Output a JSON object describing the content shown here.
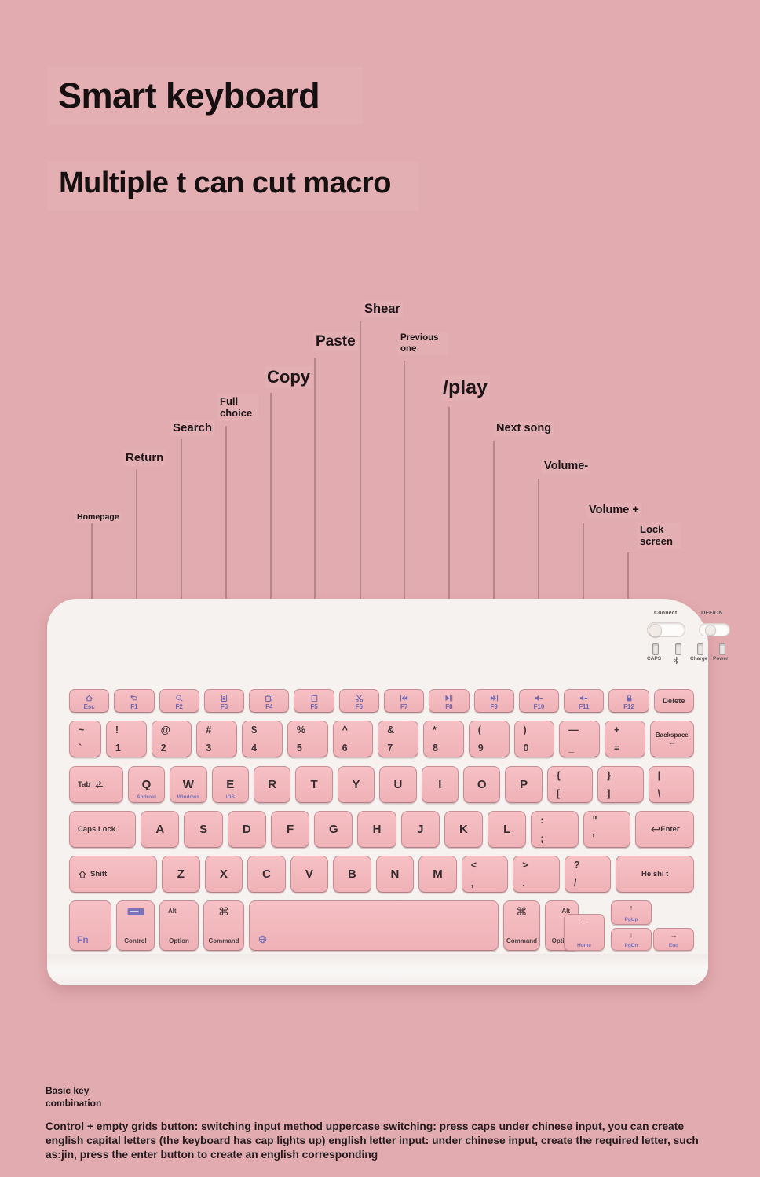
{
  "header": {
    "title": "Smart keyboard",
    "subtitle": "Multiple t can cut macro"
  },
  "callouts": [
    {
      "label": "Homepage",
      "target_key": "Esc"
    },
    {
      "label": "Return",
      "target_key": "F1"
    },
    {
      "label": "Search",
      "target_key": "F2"
    },
    {
      "label": "Full choice",
      "target_key": "F3"
    },
    {
      "label": "Copy",
      "target_key": "F4"
    },
    {
      "label": "Paste",
      "target_key": "F5"
    },
    {
      "label": "Shear",
      "target_key": "F6"
    },
    {
      "label": "Previous one",
      "target_key": "F7"
    },
    {
      "label": "/play",
      "target_key": "F8"
    },
    {
      "label": "Next song",
      "target_key": "F9"
    },
    {
      "label": "Volume-",
      "target_key": "F10"
    },
    {
      "label": "Volume +",
      "target_key": "F11"
    },
    {
      "label": "Lock screen",
      "target_key": "F12"
    }
  ],
  "keyboard": {
    "indicator": {
      "connect_label": "Connect",
      "power_label": "OFF/ON",
      "leds": [
        {
          "label": "CAPS"
        },
        {
          "icon": "bluetooth-icon"
        },
        {
          "label": "Charge"
        },
        {
          "label": "Power"
        }
      ]
    },
    "colors": {
      "background_pink": "#e2abaf",
      "keyboard_body": "#f5f2f0",
      "key_pink": "#f2b8bc",
      "accent_purple": "#6f66ae",
      "key_text": "#3f3437"
    },
    "rows": [
      {
        "keys": [
          {
            "name": "esc",
            "type": "fn",
            "icon": "home-icon",
            "label": "Esc"
          },
          {
            "name": "f1",
            "type": "fn",
            "icon": "back-icon",
            "label": "F1"
          },
          {
            "name": "f2",
            "type": "fn",
            "icon": "search-icon",
            "label": "F2"
          },
          {
            "name": "f3",
            "type": "fn",
            "icon": "select-all-icon",
            "label": "F3"
          },
          {
            "name": "f4",
            "type": "fn",
            "icon": "copy-icon",
            "label": "F4"
          },
          {
            "name": "f5",
            "type": "fn",
            "icon": "paste-icon",
            "label": "F5"
          },
          {
            "name": "f6",
            "type": "fn",
            "icon": "cut-icon",
            "label": "F6"
          },
          {
            "name": "f7",
            "type": "fn",
            "icon": "prev-track-icon",
            "label": "F7"
          },
          {
            "name": "f8",
            "type": "fn",
            "icon": "play-pause-icon",
            "label": "F8"
          },
          {
            "name": "f9",
            "type": "fn",
            "icon": "next-track-icon",
            "label": "F9"
          },
          {
            "name": "f10",
            "type": "fn",
            "icon": "volume-down-icon",
            "label": "F10"
          },
          {
            "name": "f11",
            "type": "fn",
            "icon": "volume-up-icon",
            "label": "F11"
          },
          {
            "name": "f12",
            "type": "fn",
            "icon": "lock-icon",
            "label": "F12"
          },
          {
            "name": "delete",
            "type": "plain",
            "label": "Delete"
          }
        ]
      },
      {
        "keys": [
          {
            "name": "grave",
            "type": "dual",
            "top": "~",
            "bottom": "`"
          },
          {
            "name": "1",
            "type": "dual",
            "top": "!",
            "bottom": "1"
          },
          {
            "name": "2",
            "type": "dual",
            "top": "@",
            "bottom": "2"
          },
          {
            "name": "3",
            "type": "dual",
            "top": "#",
            "bottom": "3"
          },
          {
            "name": "4",
            "type": "dual",
            "top": "$",
            "bottom": "4"
          },
          {
            "name": "5",
            "type": "dual",
            "top": "%",
            "bottom": "5"
          },
          {
            "name": "6",
            "type": "dual",
            "top": "^",
            "bottom": "6"
          },
          {
            "name": "7",
            "type": "dual",
            "top": "&",
            "bottom": "7"
          },
          {
            "name": "8",
            "type": "dual",
            "top": "*",
            "bottom": "8"
          },
          {
            "name": "9",
            "type": "dual",
            "top": "(",
            "bottom": "9"
          },
          {
            "name": "0",
            "type": "dual",
            "top": ")",
            "bottom": "0"
          },
          {
            "name": "minus",
            "type": "dual",
            "top": "—",
            "bottom": "_"
          },
          {
            "name": "equals",
            "type": "dual",
            "top": "+",
            "bottom": "="
          },
          {
            "name": "backspace",
            "type": "backspace",
            "label": "Backspace",
            "arrow": "←"
          }
        ]
      },
      {
        "keys": [
          {
            "name": "tab",
            "type": "tab",
            "label": "Tab",
            "icon": "tab-icon"
          },
          {
            "name": "q",
            "type": "letter",
            "label": "Q",
            "sub": "Android"
          },
          {
            "name": "w",
            "type": "letter",
            "label": "W",
            "sub": "Windows"
          },
          {
            "name": "e",
            "type": "letter",
            "label": "E",
            "sub": "iOS"
          },
          {
            "name": "r",
            "type": "letter",
            "label": "R"
          },
          {
            "name": "t",
            "type": "letter",
            "label": "T"
          },
          {
            "name": "y",
            "type": "letter",
            "label": "Y"
          },
          {
            "name": "u",
            "type": "letter",
            "label": "U"
          },
          {
            "name": "i",
            "type": "letter",
            "label": "I"
          },
          {
            "name": "o",
            "type": "letter",
            "label": "O"
          },
          {
            "name": "p",
            "type": "letter",
            "label": "P"
          },
          {
            "name": "bracket-left",
            "type": "dual",
            "top": "{",
            "bottom": "["
          },
          {
            "name": "bracket-right",
            "type": "dual",
            "top": "}",
            "bottom": "]"
          },
          {
            "name": "backslash",
            "type": "dual",
            "top": "|",
            "bottom": "\\"
          }
        ]
      },
      {
        "keys": [
          {
            "name": "caps-lock",
            "type": "mod",
            "label": "Caps Lock"
          },
          {
            "name": "a",
            "type": "letter",
            "label": "A"
          },
          {
            "name": "s",
            "type": "letter",
            "label": "S"
          },
          {
            "name": "d",
            "type": "letter",
            "label": "D"
          },
          {
            "name": "f",
            "type": "letter",
            "label": "F"
          },
          {
            "name": "g",
            "type": "letter",
            "label": "G"
          },
          {
            "name": "h",
            "type": "letter",
            "label": "H"
          },
          {
            "name": "j",
            "type": "letter",
            "label": "J"
          },
          {
            "name": "k",
            "type": "letter",
            "label": "K"
          },
          {
            "name": "l",
            "type": "letter",
            "label": "L"
          },
          {
            "name": "semicolon",
            "type": "dual",
            "top": ":",
            "bottom": ";"
          },
          {
            "name": "quote",
            "type": "dual",
            "top": "\"",
            "bottom": "'"
          },
          {
            "name": "enter",
            "type": "enter",
            "label": "Enter",
            "icon": "enter-arrow-icon"
          }
        ]
      },
      {
        "keys": [
          {
            "name": "shift-left",
            "type": "shift",
            "label": "Shift",
            "icon": "shift-icon"
          },
          {
            "name": "z",
            "type": "letter",
            "label": "Z"
          },
          {
            "name": "x",
            "type": "letter",
            "label": "X"
          },
          {
            "name": "c",
            "type": "letter",
            "label": "C"
          },
          {
            "name": "v",
            "type": "letter",
            "label": "V"
          },
          {
            "name": "b",
            "type": "letter",
            "label": "B"
          },
          {
            "name": "n",
            "type": "letter",
            "label": "N"
          },
          {
            "name": "m",
            "type": "letter",
            "label": "M"
          },
          {
            "name": "comma",
            "type": "dual",
            "top": "<",
            "bottom": ","
          },
          {
            "name": "period",
            "type": "dual",
            "top": ">",
            "bottom": "."
          },
          {
            "name": "slash",
            "type": "dual",
            "top": "?",
            "bottom": "/"
          },
          {
            "name": "shift-right",
            "type": "plain",
            "label": "He shi t"
          }
        ]
      },
      {
        "keys": [
          {
            "name": "fn",
            "type": "fn-mod",
            "label": "Fn"
          },
          {
            "name": "control",
            "type": "control",
            "label": "Control",
            "icon": "input-method-icon"
          },
          {
            "name": "option-left",
            "type": "option",
            "label": "Option",
            "top_label": "Alt",
            "top_side": "L"
          },
          {
            "name": "command-left",
            "type": "command",
            "label": "Command",
            "symbol": "⌘"
          },
          {
            "name": "space",
            "type": "space",
            "icon": "globe-icon"
          },
          {
            "name": "command-right",
            "type": "command",
            "label": "Command",
            "symbol": "⌘"
          },
          {
            "name": "option-right",
            "type": "option",
            "label": "Option",
            "top_label": "Alt",
            "top_side": "R"
          }
        ]
      }
    ],
    "nav_keys": [
      {
        "name": "home",
        "arrow": "←",
        "label": "Home"
      },
      {
        "name": "pgup",
        "arrow": "↑",
        "label": "PgUp"
      },
      {
        "name": "pgdn",
        "arrow": "↓",
        "label": "PgDn"
      },
      {
        "name": "end",
        "arrow": "→",
        "label": "End"
      }
    ]
  },
  "footer": {
    "heading": "Basic key\ncombination",
    "body": "Control + empty grids button: switching input method uppercase switching: press caps under chinese input, you can create english capital letters (the keyboard has cap lights up) english letter input: under chinese input, create the required letter, such as:jin, press the enter button to create an english corresponding"
  }
}
